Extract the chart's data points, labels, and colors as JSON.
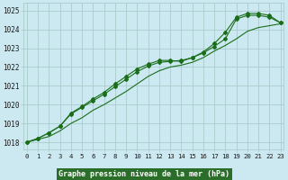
{
  "title": "Graphe pression niveau de la mer (hPa)",
  "bg_color": "#cce8f0",
  "grid_color": "#aacccc",
  "line_color": "#1a6e1a",
  "title_bg": "#2a6e2a",
  "title_fg": "#ffffff",
  "xlim": [
    -0.3,
    23.3
  ],
  "ylim": [
    1017.6,
    1025.4
  ],
  "yticks": [
    1018,
    1019,
    1020,
    1021,
    1022,
    1023,
    1024,
    1025
  ],
  "x_labels": [
    "0",
    "1",
    "2",
    "3",
    "4",
    "5",
    "6",
    "7",
    "8",
    "9",
    "10",
    "11",
    "12",
    "13",
    "14",
    "15",
    "16",
    "17",
    "18",
    "19",
    "20",
    "21",
    "22",
    "23"
  ],
  "series": {
    "line_low": [
      1018.0,
      1018.15,
      1018.3,
      1018.6,
      1019.0,
      1019.3,
      1019.7,
      1020.0,
      1020.35,
      1020.7,
      1021.1,
      1021.5,
      1021.8,
      1022.0,
      1022.1,
      1022.25,
      1022.5,
      1022.85,
      1023.15,
      1023.5,
      1023.9,
      1024.1,
      1024.2,
      1024.3
    ],
    "line_mid": [
      1018.0,
      1018.2,
      1018.5,
      1018.85,
      1019.5,
      1019.85,
      1020.2,
      1020.55,
      1020.95,
      1021.35,
      1021.75,
      1022.05,
      1022.25,
      1022.3,
      1022.35,
      1022.5,
      1022.75,
      1023.1,
      1023.5,
      1024.55,
      1024.75,
      1024.75,
      1024.65,
      1024.35
    ],
    "line_high": [
      1018.0,
      1018.2,
      1018.5,
      1018.85,
      1019.55,
      1019.9,
      1020.3,
      1020.65,
      1021.1,
      1021.5,
      1021.9,
      1022.15,
      1022.35,
      1022.35,
      1022.3,
      1022.5,
      1022.8,
      1023.25,
      1023.85,
      1024.65,
      1024.85,
      1024.85,
      1024.75,
      1024.35
    ]
  }
}
